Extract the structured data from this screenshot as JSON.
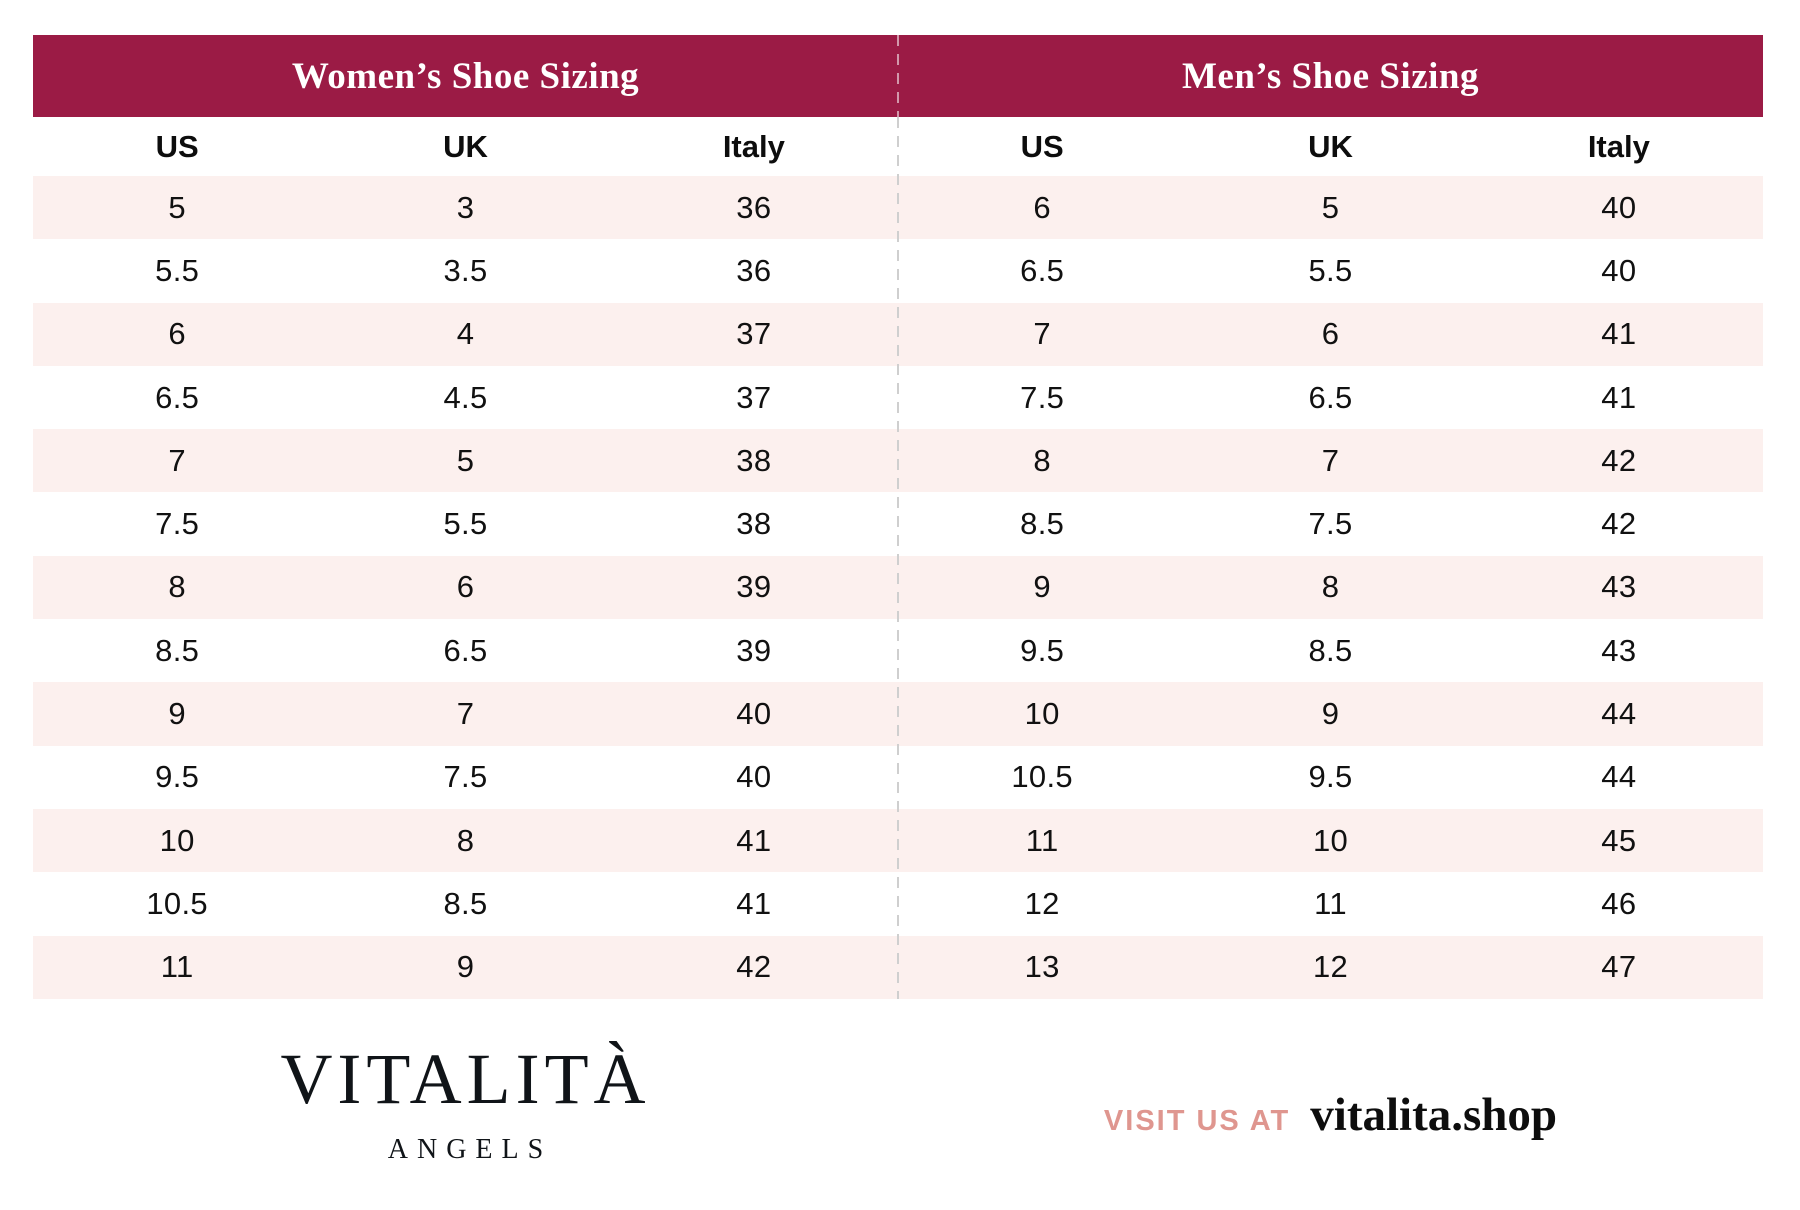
{
  "women_table": {
    "title": "Women’s Shoe Sizing",
    "columns": [
      "US",
      "UK",
      "Italy"
    ],
    "rows": [
      [
        "5",
        "3",
        "36"
      ],
      [
        "5.5",
        "3.5",
        "36"
      ],
      [
        "6",
        "4",
        "37"
      ],
      [
        "6.5",
        "4.5",
        "37"
      ],
      [
        "7",
        "5",
        "38"
      ],
      [
        "7.5",
        "5.5",
        "38"
      ],
      [
        "8",
        "6",
        "39"
      ],
      [
        "8.5",
        "6.5",
        "39"
      ],
      [
        "9",
        "7",
        "40"
      ],
      [
        "9.5",
        "7.5",
        "40"
      ],
      [
        "10",
        "8",
        "41"
      ],
      [
        "10.5",
        "8.5",
        "41"
      ],
      [
        "11",
        "9",
        "42"
      ]
    ]
  },
  "men_table": {
    "title": "Men’s Shoe Sizing",
    "columns": [
      "US",
      "UK",
      "Italy"
    ],
    "rows": [
      [
        "6",
        "5",
        "40"
      ],
      [
        "6.5",
        "5.5",
        "40"
      ],
      [
        "7",
        "6",
        "41"
      ],
      [
        "7.5",
        "6.5",
        "41"
      ],
      [
        "8",
        "7",
        "42"
      ],
      [
        "8.5",
        "7.5",
        "42"
      ],
      [
        "9",
        "8",
        "43"
      ],
      [
        "9.5",
        "8.5",
        "43"
      ],
      [
        "10",
        "9",
        "44"
      ],
      [
        "10.5",
        "9.5",
        "44"
      ],
      [
        "11",
        "10",
        "45"
      ],
      [
        "12",
        "11",
        "46"
      ],
      [
        "13",
        "12",
        "47"
      ]
    ]
  },
  "footer": {
    "brand_name": "VITALITÀ",
    "brand_subtitle": "ANGELS",
    "visit_label": "VISIT US AT",
    "website": "vitalita.shop"
  },
  "colors": {
    "header_band": "#9B1B45",
    "row_stripe": "#FCF0EE",
    "visit_label_color": "#DF968F",
    "divider": "#CFCFCF"
  }
}
